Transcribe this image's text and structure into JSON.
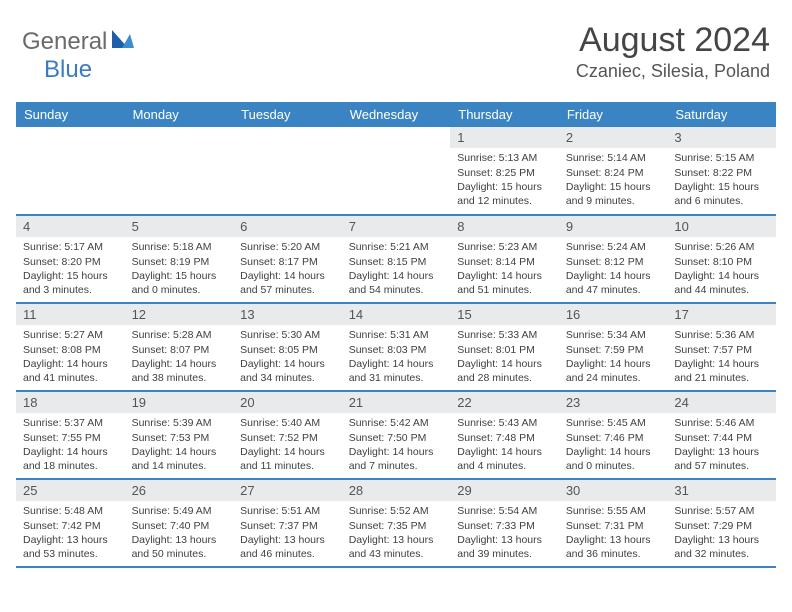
{
  "brand": {
    "part1": "General",
    "part2": "Blue"
  },
  "title": "August 2024",
  "subtitle": "Czaniec, Silesia, Poland",
  "colors": {
    "header_bg": "#3b84c4",
    "header_text": "#ffffff",
    "daynum_bg": "#e9eaec",
    "row_border": "#3b84c4",
    "logo_gray": "#6a6a6b",
    "logo_blue": "#3d7bbf"
  },
  "weekdays": [
    "Sunday",
    "Monday",
    "Tuesday",
    "Wednesday",
    "Thursday",
    "Friday",
    "Saturday"
  ],
  "weeks": [
    [
      null,
      null,
      null,
      null,
      {
        "n": "1",
        "sr": "5:13 AM",
        "ss": "8:25 PM",
        "dl": "15 hours and 12 minutes."
      },
      {
        "n": "2",
        "sr": "5:14 AM",
        "ss": "8:24 PM",
        "dl": "15 hours and 9 minutes."
      },
      {
        "n": "3",
        "sr": "5:15 AM",
        "ss": "8:22 PM",
        "dl": "15 hours and 6 minutes."
      }
    ],
    [
      {
        "n": "4",
        "sr": "5:17 AM",
        "ss": "8:20 PM",
        "dl": "15 hours and 3 minutes."
      },
      {
        "n": "5",
        "sr": "5:18 AM",
        "ss": "8:19 PM",
        "dl": "15 hours and 0 minutes."
      },
      {
        "n": "6",
        "sr": "5:20 AM",
        "ss": "8:17 PM",
        "dl": "14 hours and 57 minutes."
      },
      {
        "n": "7",
        "sr": "5:21 AM",
        "ss": "8:15 PM",
        "dl": "14 hours and 54 minutes."
      },
      {
        "n": "8",
        "sr": "5:23 AM",
        "ss": "8:14 PM",
        "dl": "14 hours and 51 minutes."
      },
      {
        "n": "9",
        "sr": "5:24 AM",
        "ss": "8:12 PM",
        "dl": "14 hours and 47 minutes."
      },
      {
        "n": "10",
        "sr": "5:26 AM",
        "ss": "8:10 PM",
        "dl": "14 hours and 44 minutes."
      }
    ],
    [
      {
        "n": "11",
        "sr": "5:27 AM",
        "ss": "8:08 PM",
        "dl": "14 hours and 41 minutes."
      },
      {
        "n": "12",
        "sr": "5:28 AM",
        "ss": "8:07 PM",
        "dl": "14 hours and 38 minutes."
      },
      {
        "n": "13",
        "sr": "5:30 AM",
        "ss": "8:05 PM",
        "dl": "14 hours and 34 minutes."
      },
      {
        "n": "14",
        "sr": "5:31 AM",
        "ss": "8:03 PM",
        "dl": "14 hours and 31 minutes."
      },
      {
        "n": "15",
        "sr": "5:33 AM",
        "ss": "8:01 PM",
        "dl": "14 hours and 28 minutes."
      },
      {
        "n": "16",
        "sr": "5:34 AM",
        "ss": "7:59 PM",
        "dl": "14 hours and 24 minutes."
      },
      {
        "n": "17",
        "sr": "5:36 AM",
        "ss": "7:57 PM",
        "dl": "14 hours and 21 minutes."
      }
    ],
    [
      {
        "n": "18",
        "sr": "5:37 AM",
        "ss": "7:55 PM",
        "dl": "14 hours and 18 minutes."
      },
      {
        "n": "19",
        "sr": "5:39 AM",
        "ss": "7:53 PM",
        "dl": "14 hours and 14 minutes."
      },
      {
        "n": "20",
        "sr": "5:40 AM",
        "ss": "7:52 PM",
        "dl": "14 hours and 11 minutes."
      },
      {
        "n": "21",
        "sr": "5:42 AM",
        "ss": "7:50 PM",
        "dl": "14 hours and 7 minutes."
      },
      {
        "n": "22",
        "sr": "5:43 AM",
        "ss": "7:48 PM",
        "dl": "14 hours and 4 minutes."
      },
      {
        "n": "23",
        "sr": "5:45 AM",
        "ss": "7:46 PM",
        "dl": "14 hours and 0 minutes."
      },
      {
        "n": "24",
        "sr": "5:46 AM",
        "ss": "7:44 PM",
        "dl": "13 hours and 57 minutes."
      }
    ],
    [
      {
        "n": "25",
        "sr": "5:48 AM",
        "ss": "7:42 PM",
        "dl": "13 hours and 53 minutes."
      },
      {
        "n": "26",
        "sr": "5:49 AM",
        "ss": "7:40 PM",
        "dl": "13 hours and 50 minutes."
      },
      {
        "n": "27",
        "sr": "5:51 AM",
        "ss": "7:37 PM",
        "dl": "13 hours and 46 minutes."
      },
      {
        "n": "28",
        "sr": "5:52 AM",
        "ss": "7:35 PM",
        "dl": "13 hours and 43 minutes."
      },
      {
        "n": "29",
        "sr": "5:54 AM",
        "ss": "7:33 PM",
        "dl": "13 hours and 39 minutes."
      },
      {
        "n": "30",
        "sr": "5:55 AM",
        "ss": "7:31 PM",
        "dl": "13 hours and 36 minutes."
      },
      {
        "n": "31",
        "sr": "5:57 AM",
        "ss": "7:29 PM",
        "dl": "13 hours and 32 minutes."
      }
    ]
  ],
  "labels": {
    "sunrise": "Sunrise:",
    "sunset": "Sunset:",
    "daylight": "Daylight:"
  }
}
